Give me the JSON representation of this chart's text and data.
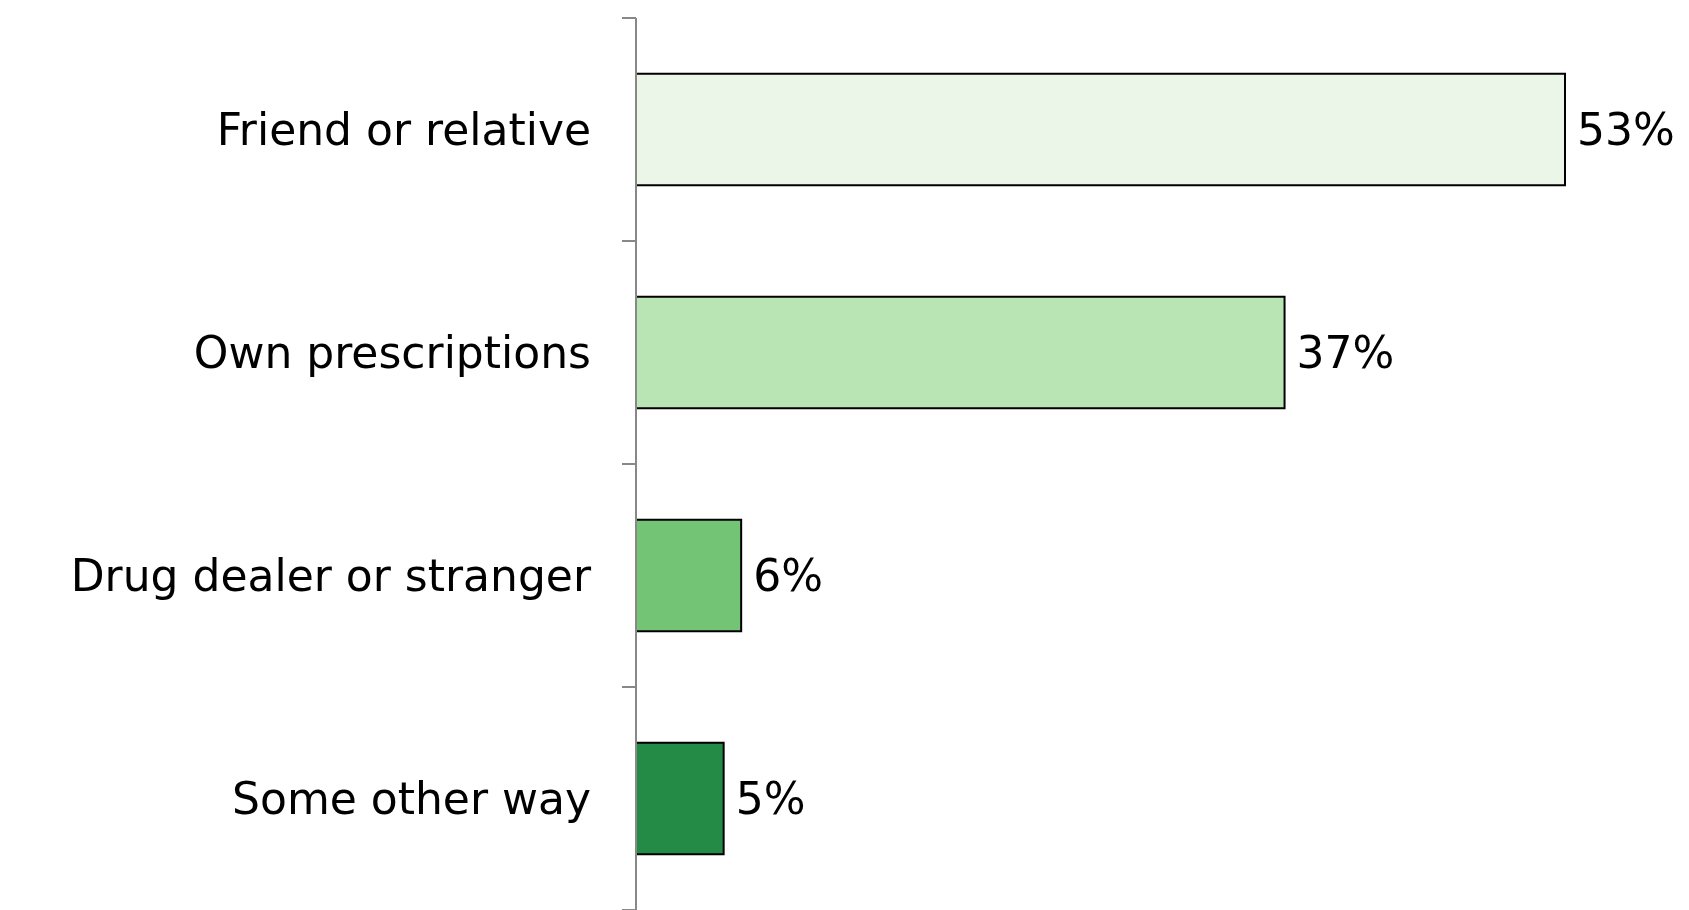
{
  "chart_data": {
    "type": "bar",
    "orientation": "horizontal",
    "categories": [
      "Friend or relative",
      "Own prescriptions",
      "Drug dealer or stranger",
      "Some other way"
    ],
    "values": [
      53,
      37,
      6,
      5
    ],
    "colors": [
      "#ebf6e8",
      "#b9e4b3",
      "#74c476",
      "#238b45"
    ],
    "value_labels": [
      "53%",
      "37%",
      "6%",
      "5%"
    ]
  }
}
